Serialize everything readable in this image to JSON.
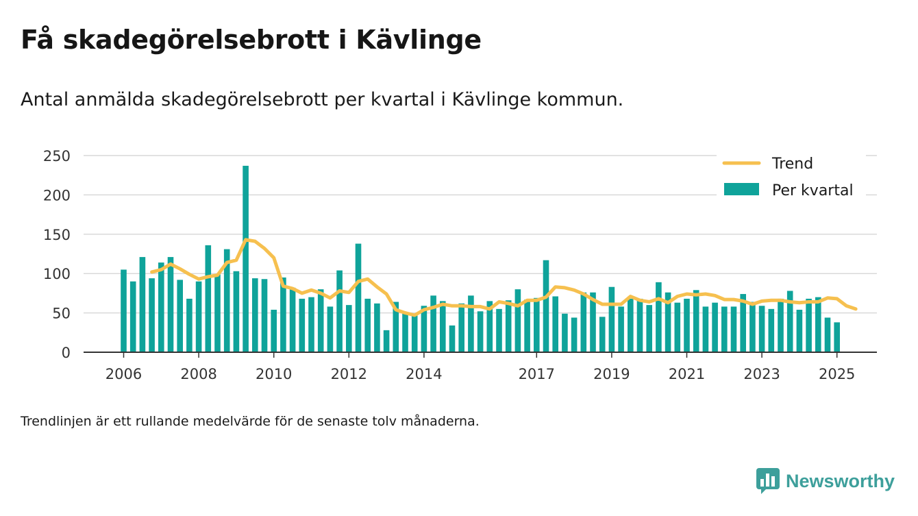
{
  "title": "Få skadegörelsebrott i Kävlinge",
  "subtitle": "Antal anmälda skadegörelsebrott per kvartal i Kävlinge kommun.",
  "note": "Trendlinjen är ett rullande medelvärde för de senaste tolv månaderna.",
  "brand": {
    "name": "Newsworthy",
    "icon": "newsworthy-logo-icon"
  },
  "colors": {
    "bars": "#0fa39a",
    "trend": "#f6c04f",
    "grid": "#d9d9d9",
    "axis": "#333333",
    "brand": "#3d9f9b"
  },
  "chart_data": {
    "type": "bar",
    "ylim": [
      0,
      250
    ],
    "yticks": [
      "0",
      "50",
      "100",
      "150",
      "200",
      "250"
    ],
    "xtick_labels": [
      "2006",
      "2008",
      "2010",
      "2012",
      "2014",
      "2017",
      "2019",
      "2021",
      "2023",
      "2025"
    ],
    "grid": true,
    "legend_position": "top-right",
    "series": [
      {
        "name": "Per kvartal",
        "kind": "bar",
        "values": [
          105,
          90,
          121,
          94,
          114,
          121,
          92,
          68,
          90,
          136,
          99,
          131,
          103,
          237,
          94,
          93,
          54,
          95,
          82,
          68,
          70,
          80,
          58,
          104,
          60,
          138,
          68,
          62,
          28,
          64,
          50,
          47,
          59,
          72,
          65,
          34,
          62,
          72,
          52,
          65,
          55,
          66,
          80,
          67,
          69,
          117,
          71,
          49,
          44,
          76,
          76,
          45,
          83,
          58,
          68,
          68,
          60,
          89,
          76,
          63,
          68,
          79,
          58,
          63,
          58,
          58,
          74,
          64,
          59,
          55,
          68,
          78,
          54,
          68,
          70,
          44,
          38
        ]
      },
      {
        "name": "Trend",
        "kind": "line",
        "start_index": 3,
        "values": [
          102,
          105,
          112,
          106,
          99,
          93,
          96,
          98,
          114,
          117,
          143,
          141,
          132,
          120,
          84,
          81,
          75,
          79,
          75,
          69,
          78,
          76,
          90,
          93,
          83,
          74,
          54,
          50,
          47,
          54,
          57,
          61,
          59,
          59,
          58,
          58,
          55,
          64,
          62,
          59,
          66,
          66,
          70,
          83,
          82,
          79,
          74,
          67,
          61,
          61,
          61,
          71,
          66,
          64,
          68,
          63,
          71,
          74,
          73,
          74,
          72,
          67,
          67,
          65,
          61,
          65,
          66,
          66,
          64,
          63,
          64,
          64,
          69,
          68,
          59,
          55
        ]
      }
    ]
  }
}
